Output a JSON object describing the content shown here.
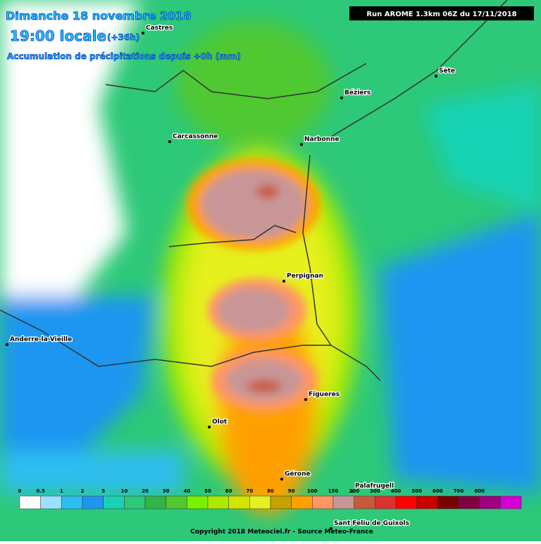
{
  "header": {
    "date": "Dimanche 18 novembre 2018",
    "time": "19:00 locale",
    "offset": "(+36h)",
    "subtitle": "Accumulation de précipitations depuis +0h (mm)",
    "run": "Run AROME 1.3km 06Z du 17/11/2018"
  },
  "cities": [
    "Castres",
    "Sète",
    "Béziers",
    "Carcassonne",
    "Narbonne",
    "Perpignan",
    "Anderre-la-Vieille",
    "Olot",
    "Figueres",
    "Gérone",
    "Palafrugell",
    "Sant Feliu de Guixols"
  ],
  "legend": {
    "labels": [
      "0",
      "0.5",
      "1",
      "2",
      "5",
      "10",
      "20",
      "30",
      "40",
      "50",
      "60",
      "70",
      "80",
      "90",
      "100",
      "150",
      "200",
      "300",
      "400",
      "500",
      "600",
      "700",
      "800",
      null
    ],
    "colors": [
      "#ffffff",
      "#9be1ff",
      "#2dbef0",
      "#1e96f0",
      "#19d2b4",
      "#2dc878",
      "#32b446",
      "#50c832",
      "#78f000",
      "#aaeb00",
      "#d2e600",
      "#e6f01e",
      "#c8a000",
      "#ffa000",
      "#ff9664",
      "#c89696",
      "#c85a3c",
      "#dc3232",
      "#ff0000",
      "#c80000",
      "#780000",
      "#800040",
      "#a00080",
      "#d200d2"
    ]
  },
  "copyright": "Copyright 2018 Meteociel.fr - Source Meteo-France"
}
